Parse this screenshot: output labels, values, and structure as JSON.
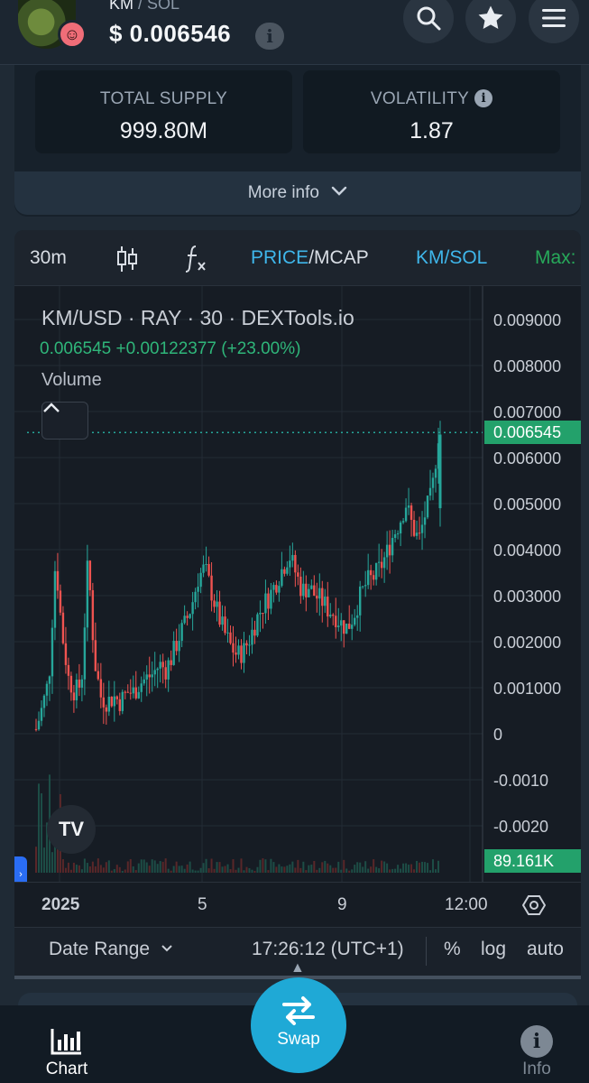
{
  "header": {
    "base": "KM",
    "quote": "/ SOL",
    "price": "$ 0.006546",
    "info_glyph": "i",
    "buttons": [
      "search-icon",
      "star-icon",
      "menu-icon"
    ]
  },
  "stats": {
    "total_supply_label": "TOTAL SUPPLY",
    "total_supply_value": "999.80M",
    "volatility_label": "VOLATILITY",
    "volatility_value": "1.87",
    "more_info": "More info"
  },
  "chart_toolbar": {
    "interval": "30m",
    "price": "PRICE",
    "separator": "/",
    "mcap": "MCAP",
    "pair": "KM/SOL",
    "max": "Max:"
  },
  "chart_legend": {
    "title": "KM/USD · RAY · 30 · DEXTools.io",
    "values": "0.006545  +0.00122377 (+23.00%)",
    "volume": "Volume"
  },
  "price_scale": {
    "ticks": [
      "0.009000",
      "0.008000",
      "0.007000",
      "0.006000",
      "0.005000",
      "0.004000",
      "0.003000",
      "0.002000",
      "0.001000",
      "0",
      "-0.0010",
      "-0.0020"
    ],
    "last_price_tag": "0.006545",
    "volume_tag": "89.161K"
  },
  "time_axis": {
    "labels": [
      "2025",
      "5",
      "9",
      "12:00"
    ]
  },
  "date_bar": {
    "date_range": "Date Range",
    "time": "17:26:12 (UTC+1)",
    "percent": "%",
    "log": "log",
    "auto": "auto"
  },
  "bottom_nav": {
    "chart": "Chart",
    "swap": "Swap",
    "info": "Info"
  },
  "colors": {
    "up": "#26a69a",
    "down": "#ef5350",
    "accent": "#3fb6ea",
    "price_tag": "#23a16b",
    "swap": "#1fa9d6"
  },
  "chart_data": {
    "type": "candlestick",
    "title": "KM/USD · RAY · 30 · DEXTools.io",
    "ylim": [
      -0.0025,
      0.0095
    ],
    "last": 0.006545,
    "x_labels": [
      "2025",
      "5",
      "9",
      "12:00"
    ],
    "close_path": [
      0.0001,
      0.0006,
      0.0012,
      0.0038,
      0.0022,
      0.0012,
      0.0009,
      0.0011,
      0.0038,
      0.0016,
      0.0008,
      0.0007,
      0.0008,
      0.0007,
      0.0009,
      0.0009,
      0.0011,
      0.0012,
      0.0013,
      0.0015,
      0.0014,
      0.0017,
      0.0021,
      0.0024,
      0.0028,
      0.0034,
      0.0036,
      0.0031,
      0.0026,
      0.0022,
      0.0019,
      0.0017,
      0.0018,
      0.0021,
      0.0025,
      0.0028,
      0.003,
      0.0033,
      0.0036,
      0.0039,
      0.0035,
      0.0031,
      0.0032,
      0.003,
      0.0029,
      0.0027,
      0.0026,
      0.0024,
      0.0023,
      0.0026,
      0.003,
      0.0033,
      0.0034,
      0.0036,
      0.0039,
      0.0043,
      0.0046,
      0.005,
      0.0045,
      0.0042,
      0.0048,
      0.0052,
      0.0065
    ]
  }
}
